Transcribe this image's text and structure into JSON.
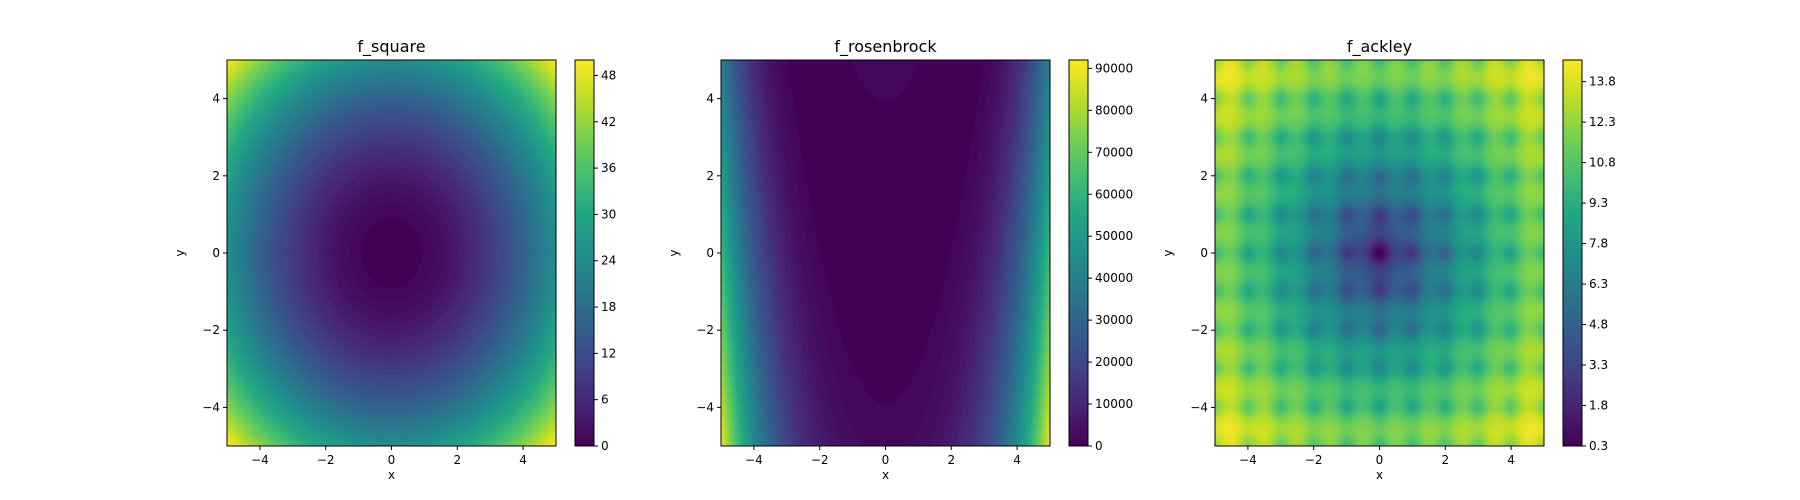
{
  "chart_data": [
    {
      "type": "heatmap",
      "title": "f_square",
      "xlabel": "x",
      "ylabel": "y",
      "xlim": [
        -5,
        5
      ],
      "ylim": [
        -5,
        5
      ],
      "x_ticks": [
        -4,
        -2,
        0,
        2,
        4
      ],
      "y_ticks": [
        -4,
        -2,
        0,
        2,
        4
      ],
      "function": "x^2 + y^2",
      "colormap": "viridis",
      "colorbar": {
        "min": 0,
        "max": 50,
        "ticks": [
          0,
          6,
          12,
          18,
          24,
          30,
          36,
          42,
          48
        ]
      }
    },
    {
      "type": "heatmap",
      "title": "f_rosenbrock",
      "xlabel": "x",
      "ylabel": "y",
      "xlim": [
        -5,
        5
      ],
      "ylim": [
        -5,
        5
      ],
      "x_ticks": [
        -4,
        -2,
        0,
        2,
        4
      ],
      "y_ticks": [
        -4,
        -2,
        0,
        2,
        4
      ],
      "function": "(1 - x)^2 + 100 (y - x^2)^2",
      "colormap": "viridis",
      "colorbar": {
        "min": 0,
        "max": 92000,
        "ticks": [
          0,
          10000,
          20000,
          30000,
          40000,
          50000,
          60000,
          70000,
          80000,
          90000
        ]
      }
    },
    {
      "type": "heatmap",
      "title": "f_ackley",
      "xlabel": "x",
      "ylabel": "y",
      "xlim": [
        -5,
        5
      ],
      "ylim": [
        -5,
        5
      ],
      "x_ticks": [
        -4,
        -2,
        0,
        2,
        4
      ],
      "y_ticks": [
        -4,
        -2,
        0,
        2,
        4
      ],
      "function": "Ackley",
      "colormap": "viridis",
      "colorbar": {
        "min": 0.3,
        "max": 14.6,
        "ticks": [
          0.3,
          1.8,
          3.3,
          4.8,
          6.3,
          7.8,
          9.3,
          10.8,
          12.3,
          13.8
        ]
      }
    }
  ]
}
